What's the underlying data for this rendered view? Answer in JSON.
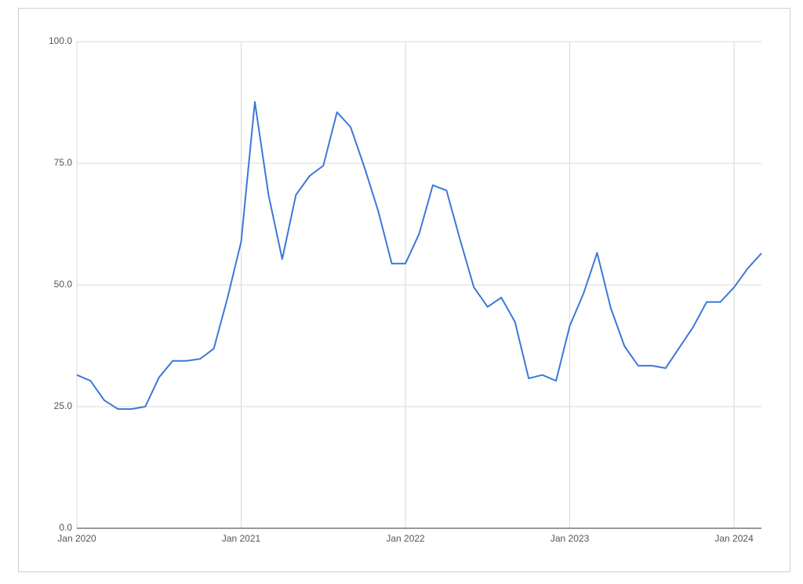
{
  "chart_data": {
    "type": "line",
    "x": [
      "2020-01",
      "2020-02",
      "2020-03",
      "2020-04",
      "2020-05",
      "2020-06",
      "2020-07",
      "2020-08",
      "2020-09",
      "2020-10",
      "2020-11",
      "2020-12",
      "2021-01",
      "2021-02",
      "2021-03",
      "2021-04",
      "2021-05",
      "2021-06",
      "2021-07",
      "2021-08",
      "2021-09",
      "2021-10",
      "2021-11",
      "2021-12",
      "2022-01",
      "2022-02",
      "2022-03",
      "2022-04",
      "2022-05",
      "2022-06",
      "2022-07",
      "2022-08",
      "2022-09",
      "2022-10",
      "2022-11",
      "2022-12",
      "2023-01",
      "2023-02",
      "2023-03",
      "2023-04",
      "2023-05",
      "2023-06",
      "2023-07",
      "2023-08",
      "2023-09",
      "2023-10",
      "2023-11",
      "2023-12",
      "2024-01",
      "2024-02",
      "2024-03"
    ],
    "values": [
      31.5,
      30.3,
      26.3,
      24.5,
      24.5,
      25,
      31,
      34.4,
      34.4,
      34.8,
      36.9,
      47.3,
      58.9,
      87.6,
      68.5,
      55.3,
      68.5,
      72.4,
      74.5,
      85.5,
      82.4,
      74.2,
      65.3,
      54.4,
      54.4,
      60.5,
      70.5,
      69.4,
      59.2,
      49.5,
      45.5,
      47.4,
      42.4,
      30.8,
      31.5,
      30.3,
      41.6,
      48.2,
      56.6,
      45.2,
      37.4,
      33.4,
      33.4,
      32.9,
      37.1,
      41.3,
      46.5,
      46.5,
      49.5,
      53.4,
      56.5
    ],
    "color": "#3c78d8",
    "xlim": [
      "2020-01",
      "2024-03"
    ],
    "xticks": [
      {
        "value": "2020-01",
        "label": "Jan 2020"
      },
      {
        "value": "2021-01",
        "label": "Jan 2021"
      },
      {
        "value": "2022-01",
        "label": "Jan 2022"
      },
      {
        "value": "2023-01",
        "label": "Jan 2023"
      },
      {
        "value": "2024-01",
        "label": "Jan 2024"
      }
    ],
    "ylim": [
      0,
      100
    ],
    "yticks": [
      {
        "value": 0,
        "label": "0.0"
      },
      {
        "value": 25,
        "label": "25.0"
      },
      {
        "value": 50,
        "label": "50.0"
      },
      {
        "value": 75,
        "label": "75.0"
      },
      {
        "value": 100,
        "label": "100.0"
      }
    ],
    "grid": true
  }
}
